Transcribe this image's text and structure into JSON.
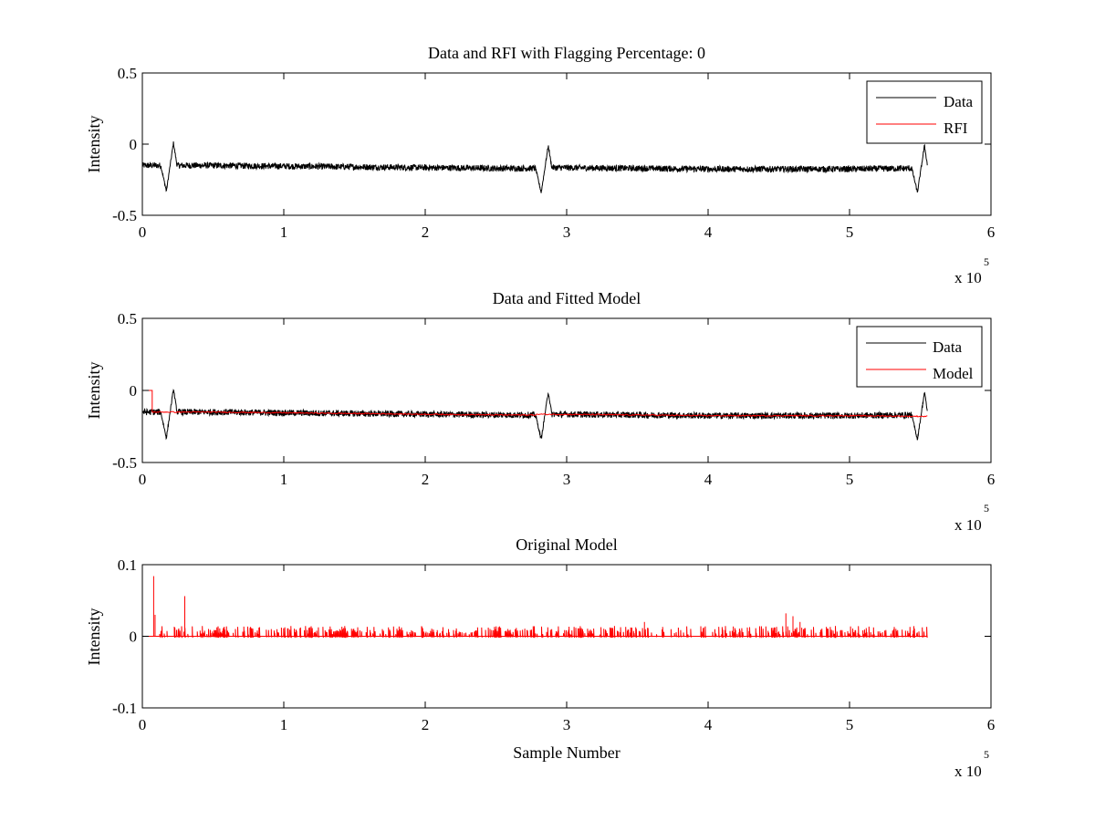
{
  "chart_data": [
    {
      "type": "line",
      "title": "Data and RFI with Flagging Percentage: 0",
      "xlabel": "",
      "ylabel": "Intensity",
      "xlim": [
        0,
        6
      ],
      "ylim": [
        -0.5,
        0.5
      ],
      "x_ticks": [
        "0",
        "1",
        "2",
        "3",
        "4",
        "5",
        "6"
      ],
      "y_ticks": [
        "-0.5",
        "0",
        "0.5"
      ],
      "x_multiplier": "x 10",
      "x_multiplier_exp": "5",
      "legend_position": "top-right",
      "legend": [
        "Data",
        "RFI"
      ],
      "colors": {
        "Data": "#000000",
        "RFI": "#ff0000"
      },
      "grid": false,
      "series": [
        {
          "name": "Data",
          "baseline_x": [
            0,
            0.5,
            1,
            1.5,
            2,
            2.5,
            2.78,
            2.9,
            3.5,
            4,
            4.5,
            5,
            5.45,
            5.55
          ],
          "baseline_y": [
            -0.15,
            -0.15,
            -0.155,
            -0.16,
            -0.165,
            -0.17,
            -0.17,
            -0.165,
            -0.17,
            -0.175,
            -0.175,
            -0.175,
            -0.17,
            -0.18
          ],
          "noise_amplitude": 0.022,
          "dips": [
            {
              "x_min": 0.17,
              "y_min": -0.33,
              "x_peak": 0.22,
              "y_peak": 0.01
            },
            {
              "x_min": 2.82,
              "y_min": -0.34,
              "x_peak": 2.87,
              "y_peak": -0.01
            },
            {
              "x_min": 5.48,
              "y_min": -0.34,
              "x_peak": 5.53,
              "y_peak": -0.01
            }
          ]
        },
        {
          "name": "RFI",
          "values": []
        }
      ]
    },
    {
      "type": "line",
      "title": "Data and Fitted Model",
      "xlabel": "",
      "ylabel": "Intensity",
      "xlim": [
        0,
        6
      ],
      "ylim": [
        -0.5,
        0.5
      ],
      "x_ticks": [
        "0",
        "1",
        "2",
        "3",
        "4",
        "5",
        "6"
      ],
      "y_ticks": [
        "-0.5",
        "0",
        "0.5"
      ],
      "x_multiplier": "x 10",
      "x_multiplier_exp": "5",
      "legend_position": "top-right",
      "legend": [
        "Data",
        "Model"
      ],
      "colors": {
        "Data": "#000000",
        "Model": "#ff0000"
      },
      "grid": false,
      "series": [
        {
          "name": "Data",
          "baseline_x": [
            0,
            0.5,
            1,
            1.5,
            2,
            2.5,
            2.78,
            2.9,
            3.5,
            4,
            4.5,
            5,
            5.45,
            5.55
          ],
          "baseline_y": [
            -0.15,
            -0.15,
            -0.155,
            -0.16,
            -0.165,
            -0.17,
            -0.17,
            -0.165,
            -0.17,
            -0.175,
            -0.175,
            -0.175,
            -0.17,
            -0.18
          ],
          "noise_amplitude": 0.022,
          "dips": [
            {
              "x_min": 0.17,
              "y_min": -0.33,
              "x_peak": 0.22,
              "y_peak": 0.01
            },
            {
              "x_min": 2.82,
              "y_min": -0.34,
              "x_peak": 2.87,
              "y_peak": -0.01
            },
            {
              "x_min": 5.48,
              "y_min": -0.34,
              "x_peak": 5.53,
              "y_peak": -0.01
            }
          ]
        },
        {
          "name": "Model",
          "x": [
            0,
            0.07,
            0.07,
            0.5,
            1,
            1.5,
            2,
            2.5,
            2.78,
            2.8,
            3.5,
            4,
            4.5,
            5,
            5.55
          ],
          "y": [
            0.0,
            0.0,
            -0.15,
            -0.15,
            -0.155,
            -0.16,
            -0.165,
            -0.17,
            -0.17,
            -0.165,
            -0.17,
            -0.175,
            -0.175,
            -0.175,
            -0.18
          ]
        }
      ]
    },
    {
      "type": "line",
      "title": "Original Model",
      "xlabel": "Sample Number",
      "ylabel": "Intensity",
      "xlim": [
        0,
        6
      ],
      "ylim": [
        -0.1,
        0.1
      ],
      "x_ticks": [
        "0",
        "1",
        "2",
        "3",
        "4",
        "5",
        "6"
      ],
      "y_ticks": [
        "-0.1",
        "0",
        "0.1"
      ],
      "x_multiplier": "x 10",
      "x_multiplier_exp": "5",
      "legend": [],
      "colors": {
        "Model": "#ff0000"
      },
      "grid": false,
      "series": [
        {
          "name": "Model",
          "x_range": [
            0,
            5.55
          ],
          "baseline": 0,
          "spikes": [
            {
              "x": 0.08,
              "y": 0.084
            },
            {
              "x": 0.09,
              "y": 0.03
            },
            {
              "x": 0.3,
              "y": 0.056
            },
            {
              "x": 3.55,
              "y": 0.02
            },
            {
              "x": 4.55,
              "y": 0.032
            },
            {
              "x": 4.6,
              "y": 0.028
            },
            {
              "x": 4.65,
              "y": 0.02
            }
          ],
          "typical_spike_height": 0.012
        }
      ]
    }
  ]
}
